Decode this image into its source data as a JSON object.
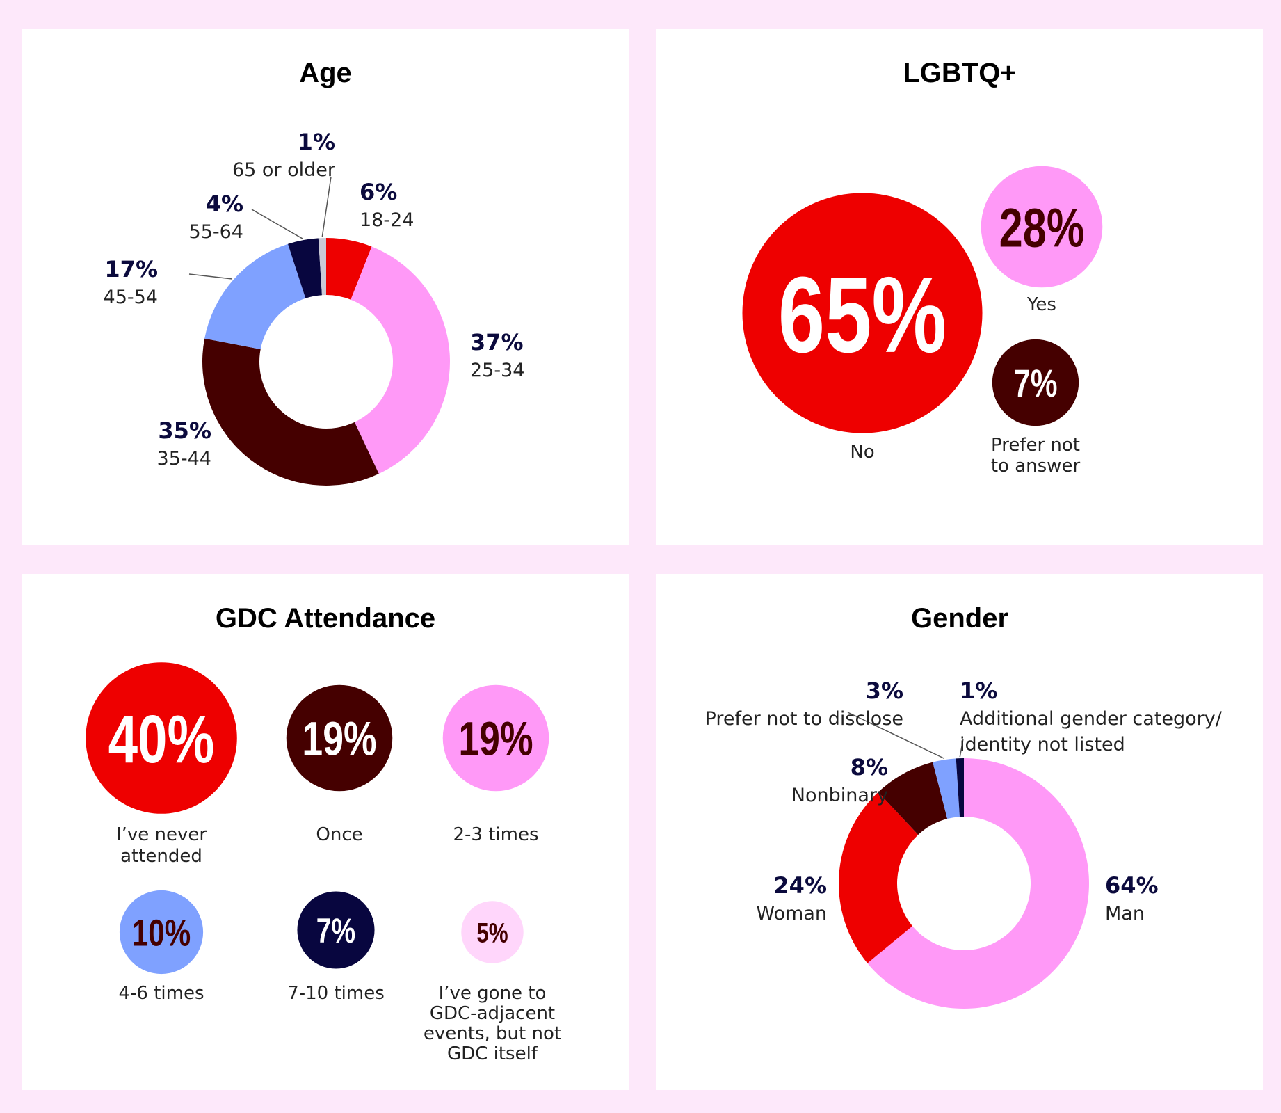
{
  "colors": {
    "background": "#fde8fa",
    "red": "#ee0000",
    "pink": "#ff99f7",
    "maroon": "#450000",
    "blue": "#7fa1ff",
    "navy": "#08063f",
    "gray": "#c9c9d6",
    "lightpink": "#ffd6fb"
  },
  "chart_data": [
    {
      "id": "age",
      "type": "pie",
      "variant": "donut",
      "title": "Age",
      "slices": [
        {
          "label": "18-24",
          "value": 6,
          "pct_text": "6%",
          "color": "#ee0000"
        },
        {
          "label": "25-34",
          "value": 37,
          "pct_text": "37%",
          "color": "#ff99f7"
        },
        {
          "label": "35-44",
          "value": 35,
          "pct_text": "35%",
          "color": "#450000"
        },
        {
          "label": "45-54",
          "value": 17,
          "pct_text": "17%",
          "color": "#7fa1ff"
        },
        {
          "label": "55-64",
          "value": 4,
          "pct_text": "4%",
          "color": "#08063f"
        },
        {
          "label": "65 or older",
          "value": 1,
          "pct_text": "1%",
          "color": "#c9c9d6"
        }
      ]
    },
    {
      "id": "lgbtq",
      "type": "bubble",
      "title": "LGBTQ+",
      "items": [
        {
          "label": "No",
          "value": 65,
          "pct_text": "65%",
          "color": "#ee0000",
          "text_color": "#ffffff"
        },
        {
          "label": "Yes",
          "value": 28,
          "pct_text": "28%",
          "color": "#ff99f7",
          "text_color": "#450000"
        },
        {
          "label": "Prefer not to answer",
          "label_lines": [
            "Prefer not",
            "to answer"
          ],
          "value": 7,
          "pct_text": "7%",
          "color": "#450000",
          "text_color": "#ffffff"
        }
      ]
    },
    {
      "id": "gdc",
      "type": "bubble",
      "title": "GDC Attendance",
      "items": [
        {
          "label": "I've never attended",
          "label_lines": [
            "I’ve never",
            "attended"
          ],
          "value": 40,
          "pct_text": "40%",
          "color": "#ee0000",
          "text_color": "#ffffff"
        },
        {
          "label": "Once",
          "label_lines": [
            "Once"
          ],
          "value": 19,
          "pct_text": "19%",
          "color": "#450000",
          "text_color": "#ffffff"
        },
        {
          "label": "2-3 times",
          "label_lines": [
            "2-3 times"
          ],
          "value": 19,
          "pct_text": "19%",
          "color": "#ff99f7",
          "text_color": "#450000"
        },
        {
          "label": "4-6 times",
          "label_lines": [
            "4-6 times"
          ],
          "value": 10,
          "pct_text": "10%",
          "color": "#7fa1ff",
          "text_color": "#450000"
        },
        {
          "label": "7-10 times",
          "label_lines": [
            "7-10 times"
          ],
          "value": 7,
          "pct_text": "7%",
          "color": "#08063f",
          "text_color": "#ffffff"
        },
        {
          "label": "I've gone to GDC-adjacent events, but not GDC itself",
          "label_lines": [
            "I’ve gone to",
            "GDC-adjacent",
            "events, but not",
            "GDC itself"
          ],
          "value": 5,
          "pct_text": "5%",
          "color": "#ffd6fb",
          "text_color": "#450000"
        }
      ]
    },
    {
      "id": "gender",
      "type": "pie",
      "variant": "donut",
      "title": "Gender",
      "slices": [
        {
          "label": "Man",
          "value": 64,
          "pct_text": "64%",
          "color": "#ff99f7"
        },
        {
          "label": "Woman",
          "value": 24,
          "pct_text": "24%",
          "color": "#ee0000"
        },
        {
          "label": "Nonbinary",
          "value": 8,
          "pct_text": "8%",
          "color": "#450000"
        },
        {
          "label": "Prefer not to disclose",
          "value": 3,
          "pct_text": "3%",
          "color": "#7fa1ff"
        },
        {
          "label": "Additional gender category/ identity not listed",
          "label_lines": [
            "Additional gender category/",
            "identity not listed"
          ],
          "value": 1,
          "pct_text": "1%",
          "color": "#08063f"
        }
      ]
    }
  ]
}
